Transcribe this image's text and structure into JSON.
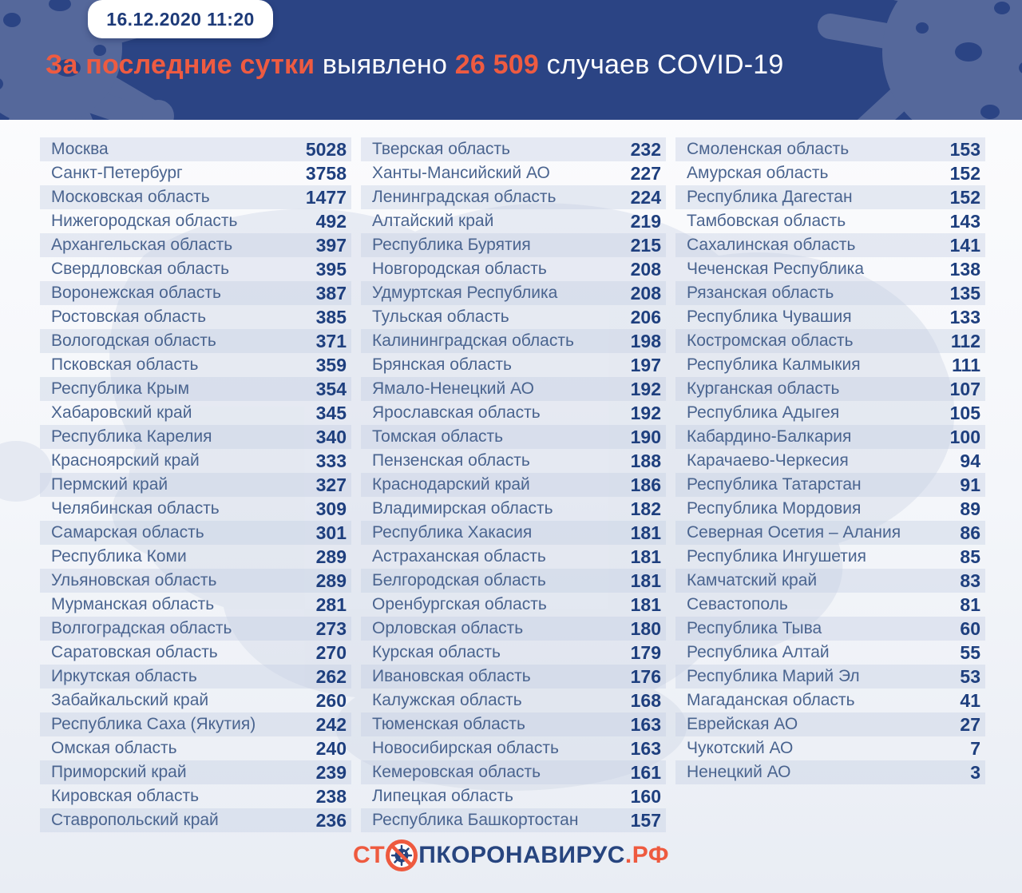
{
  "header": {
    "badge_datetime": "16.12.2020 11:20",
    "title_segments": [
      {
        "text": "За последние сутки ",
        "highlight": true
      },
      {
        "text": "выявлено ",
        "highlight": false
      },
      {
        "text": "26 509 ",
        "highlight": true
      },
      {
        "text": "случаев COVID-19",
        "highlight": false
      }
    ]
  },
  "footer": {
    "logo_prefix": "СТ",
    "logo_middle": "ПКОРОНАВИРУС",
    "logo_suffix": ".РФ"
  },
  "colors": {
    "header_bg": "#2b4484",
    "accent_orange": "#ee5b41",
    "blob_blue": "#55689b",
    "region_text": "#4a648f",
    "value_text": "#1e3f7e",
    "stripe": "#e2e8f1",
    "logo_navy": "#27457f"
  },
  "chart_data": {
    "type": "table",
    "title": "За последние сутки выявлено 26 509 случаев COVID-19",
    "datetime": "16.12.2020 11:20",
    "total_new_cases": 26509,
    "value_label": "случаев COVID-19",
    "columns": [
      {
        "rows": [
          {
            "region": "Москва",
            "value": 5028
          },
          {
            "region": "Санкт-Петербург",
            "value": 3758
          },
          {
            "region": "Московская область",
            "value": 1477
          },
          {
            "region": "Нижегородская область",
            "value": 492
          },
          {
            "region": "Архангельская область",
            "value": 397
          },
          {
            "region": "Свердловская область",
            "value": 395
          },
          {
            "region": "Воронежская область",
            "value": 387
          },
          {
            "region": "Ростовская область",
            "value": 385
          },
          {
            "region": "Вологодская область",
            "value": 371
          },
          {
            "region": "Псковская область",
            "value": 359
          },
          {
            "region": "Республика Крым",
            "value": 354
          },
          {
            "region": "Хабаровский край",
            "value": 345
          },
          {
            "region": "Республика Карелия",
            "value": 340
          },
          {
            "region": "Красноярский край",
            "value": 333
          },
          {
            "region": "Пермский край",
            "value": 327
          },
          {
            "region": "Челябинская область",
            "value": 309
          },
          {
            "region": "Самарская область",
            "value": 301
          },
          {
            "region": "Республика Коми",
            "value": 289
          },
          {
            "region": "Ульяновская область",
            "value": 289
          },
          {
            "region": "Мурманская область",
            "value": 281
          },
          {
            "region": "Волгоградская область",
            "value": 273
          },
          {
            "region": "Саратовская область",
            "value": 270
          },
          {
            "region": "Иркутская область",
            "value": 262
          },
          {
            "region": "Забайкальский край",
            "value": 260
          },
          {
            "region": "Республика Саха (Якутия)",
            "value": 242
          },
          {
            "region": "Омская область",
            "value": 240
          },
          {
            "region": "Приморский край",
            "value": 239
          },
          {
            "region": "Кировская область",
            "value": 238
          },
          {
            "region": "Ставропольский край",
            "value": 236
          }
        ]
      },
      {
        "rows": [
          {
            "region": "Тверская область",
            "value": 232
          },
          {
            "region": "Ханты-Мансийский АО",
            "value": 227
          },
          {
            "region": "Ленинградская область",
            "value": 224
          },
          {
            "region": "Алтайский край",
            "value": 219
          },
          {
            "region": "Республика Бурятия",
            "value": 215
          },
          {
            "region": "Новгородская область",
            "value": 208
          },
          {
            "region": "Удмуртская Республика",
            "value": 208
          },
          {
            "region": "Тульская область",
            "value": 206
          },
          {
            "region": "Калининградская область",
            "value": 198
          },
          {
            "region": "Брянская область",
            "value": 197
          },
          {
            "region": "Ямало-Ненецкий АО",
            "value": 192
          },
          {
            "region": "Ярославская область",
            "value": 192
          },
          {
            "region": "Томская область",
            "value": 190
          },
          {
            "region": "Пензенская область",
            "value": 188
          },
          {
            "region": "Краснодарский край",
            "value": 186
          },
          {
            "region": "Владимирская область",
            "value": 182
          },
          {
            "region": "Республика Хакасия",
            "value": 181
          },
          {
            "region": "Астраханская область",
            "value": 181
          },
          {
            "region": "Белгородская область",
            "value": 181
          },
          {
            "region": "Оренбургская область",
            "value": 181
          },
          {
            "region": "Орловская область",
            "value": 180
          },
          {
            "region": "Курская область",
            "value": 179
          },
          {
            "region": "Ивановская область",
            "value": 176
          },
          {
            "region": "Калужская область",
            "value": 168
          },
          {
            "region": "Тюменская область",
            "value": 163
          },
          {
            "region": "Новосибирская область",
            "value": 163
          },
          {
            "region": "Кемеровская область",
            "value": 161
          },
          {
            "region": "Липецкая область",
            "value": 160
          },
          {
            "region": "Республика Башкортостан",
            "value": 157
          }
        ]
      },
      {
        "rows": [
          {
            "region": "Смоленская область",
            "value": 153
          },
          {
            "region": "Амурская область",
            "value": 152
          },
          {
            "region": "Республика Дагестан",
            "value": 152
          },
          {
            "region": "Тамбовская область",
            "value": 143
          },
          {
            "region": "Сахалинская область",
            "value": 141
          },
          {
            "region": "Чеченская Республика",
            "value": 138
          },
          {
            "region": "Рязанская область",
            "value": 135
          },
          {
            "region": "Республика Чувашия",
            "value": 133
          },
          {
            "region": "Костромская область",
            "value": 112
          },
          {
            "region": "Республика Калмыкия",
            "value": 111
          },
          {
            "region": "Курганская область",
            "value": 107
          },
          {
            "region": "Республика Адыгея",
            "value": 105
          },
          {
            "region": "Кабардино-Балкария",
            "value": 100
          },
          {
            "region": "Карачаево-Черкесия",
            "value": 94
          },
          {
            "region": "Республика Татарстан",
            "value": 91
          },
          {
            "region": "Республика Мордовия",
            "value": 89
          },
          {
            "region": "Северная Осетия – Алания",
            "value": 86
          },
          {
            "region": "Республика Ингушетия",
            "value": 85
          },
          {
            "region": "Камчатский край",
            "value": 83
          },
          {
            "region": "Севастополь",
            "value": 81
          },
          {
            "region": "Республика Тыва",
            "value": 60
          },
          {
            "region": "Республика Алтай",
            "value": 55
          },
          {
            "region": "Республика Марий Эл",
            "value": 53
          },
          {
            "region": "Магаданская область",
            "value": 41
          },
          {
            "region": "Еврейская АО",
            "value": 27
          },
          {
            "region": "Чукотский АО",
            "value": 7
          },
          {
            "region": "Ненецкий АО",
            "value": 3
          }
        ]
      }
    ]
  }
}
